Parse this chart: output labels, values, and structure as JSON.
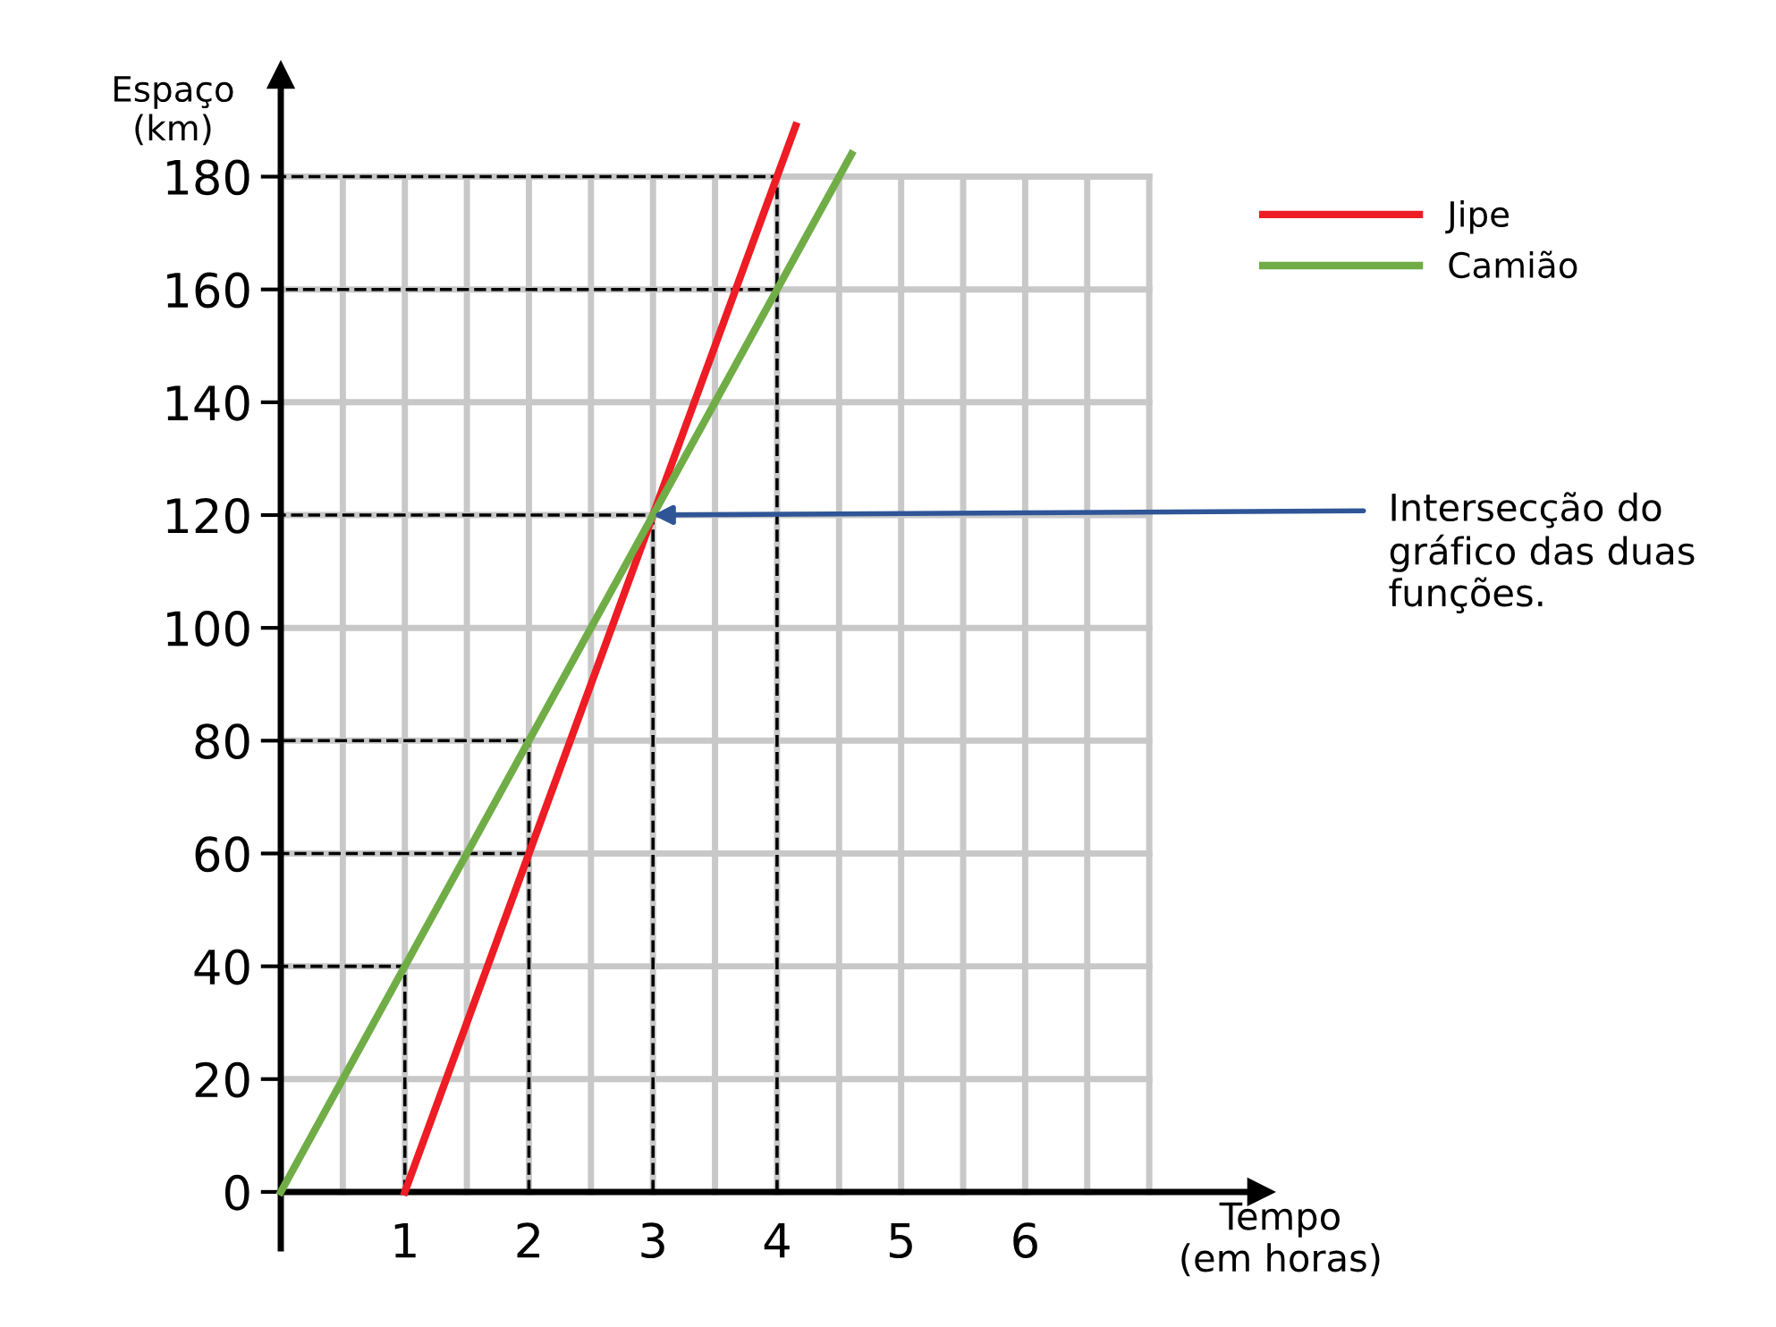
{
  "chart_data": {
    "type": "line",
    "xlabel": "Tempo\n(em horas)",
    "ylabel": "Espaço\n(km)",
    "series": [
      {
        "name": "Jipe",
        "color": "#ee1c24",
        "x": [
          1,
          2,
          3,
          4,
          4.15
        ],
        "values": [
          0,
          60,
          120,
          180,
          189
        ]
      },
      {
        "name": "Camião",
        "color": "#70ad47",
        "x": [
          0,
          1,
          2,
          3,
          4,
          4.6
        ],
        "values": [
          0,
          40,
          80,
          120,
          160,
          184
        ]
      },
      {
        "color": "#000000",
        "line_style": "dashed",
        "x": [
          1,
          1,
          0
        ],
        "values": [
          0,
          40,
          40
        ]
      },
      {
        "color": "#000000",
        "line_style": "dashed",
        "x": [
          2,
          2,
          0
        ],
        "values": [
          0,
          80,
          80
        ]
      },
      {
        "color": "#000000",
        "line_style": "dashed",
        "x": [
          2,
          0
        ],
        "values": [
          60,
          60
        ]
      },
      {
        "color": "#000000",
        "line_style": "dashed",
        "x": [
          3,
          3,
          0
        ],
        "values": [
          0,
          120,
          120
        ]
      },
      {
        "color": "#000000",
        "line_style": "dashed",
        "x": [
          4,
          4,
          0
        ],
        "values": [
          0,
          180,
          180
        ]
      },
      {
        "color": "#000000",
        "line_style": "dashed",
        "x": [
          4,
          0
        ],
        "values": [
          160,
          160
        ]
      }
    ],
    "xlim": [
      0,
      7.9
    ],
    "ylim": [
      -10,
      198
    ],
    "xticks": [
      1,
      2,
      3,
      4,
      5,
      6
    ],
    "yticks": [
      {
        "value": 0,
        "label": "0"
      },
      20,
      40,
      60,
      80,
      100,
      120,
      140,
      160,
      180
    ],
    "grid": true,
    "legend": "top right",
    "marker": "none",
    "line_style": "solid",
    "annotations": [
      {
        "text": "Intersecção do\ngráfico das duas\nfunções.",
        "x": 3,
        "y": 120
      }
    ]
  }
}
